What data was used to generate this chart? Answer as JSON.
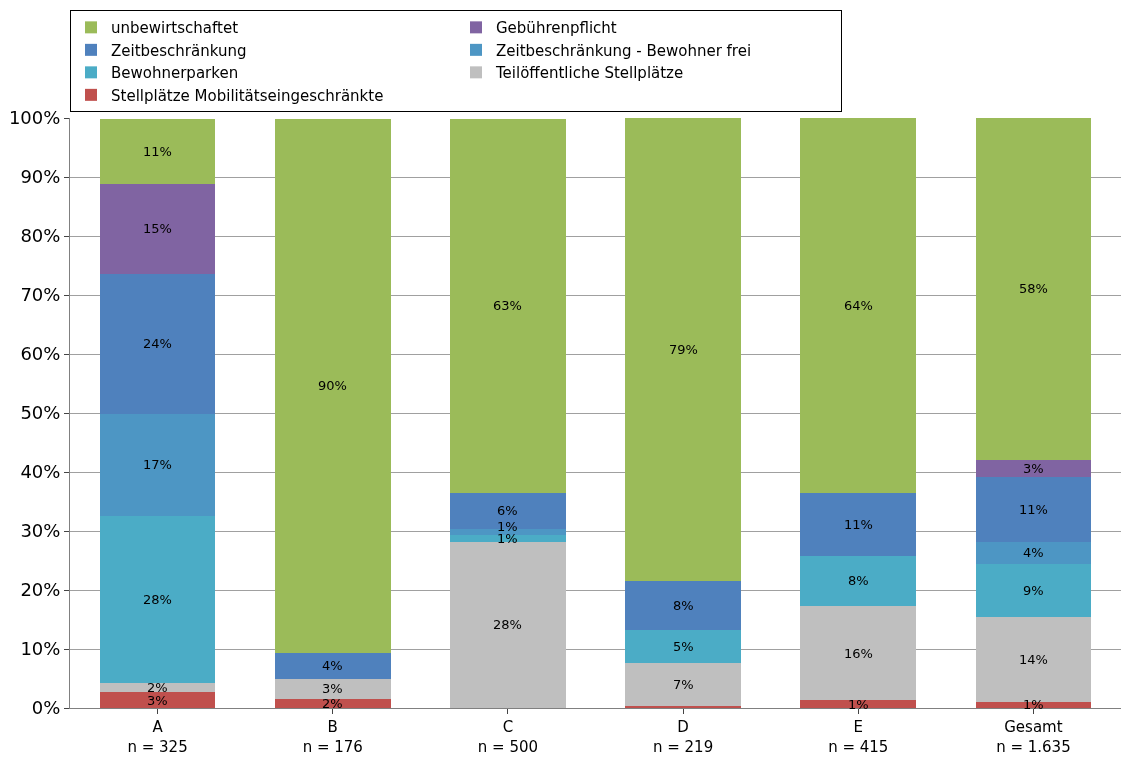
{
  "chart_data": {
    "type": "bar",
    "stacked": true,
    "categories": [
      "A\nn = 325",
      "B\nn = 176",
      "C\nn = 500",
      "D\nn = 219",
      "E\nn = 415",
      "Gesamt\nn = 1.635"
    ],
    "series": [
      {
        "name": "Stellplätze Mobilitätseingeschränkte",
        "color": "#c0504d",
        "values": [
          2.7,
          1.6,
          null,
          0.4,
          1.3,
          1.1
        ],
        "value_labels": [
          "3%",
          "2%",
          null,
          null,
          "1%",
          "1%"
        ]
      },
      {
        "name": "Teilöffentliche Stellplätze",
        "color": "#bfbfbf",
        "values": [
          1.6,
          3.4,
          28.2,
          7.3,
          16.0,
          14.3
        ],
        "value_labels": [
          "2%",
          "3%",
          "28%",
          "7%",
          "16%",
          "14%"
        ]
      },
      {
        "name": "Bewohnerparken",
        "color": "#4bacc6",
        "values": [
          28.3,
          null,
          1.2,
          5.5,
          8.5,
          9.0
        ],
        "value_labels": [
          "28%",
          null,
          "1%",
          "5%",
          "8%",
          "9%"
        ]
      },
      {
        "name": "Zeitbeschränkung - Bewohner frei",
        "color": "#4d96c4",
        "values": [
          17.3,
          null,
          1.0,
          null,
          null,
          3.8
        ],
        "value_labels": [
          "17%",
          null,
          "1%",
          null,
          null,
          "4%"
        ]
      },
      {
        "name": "Zeitbeschränkung",
        "color": "#4f81bd",
        "values": [
          23.7,
          4.4,
          6.1,
          8.3,
          10.6,
          10.9
        ],
        "value_labels": [
          "24%",
          "4%",
          "6%",
          "8%",
          "11%",
          "11%"
        ]
      },
      {
        "name": "Gebührenpflicht",
        "color": "#8064a2",
        "values": [
          15.2,
          null,
          null,
          null,
          null,
          3.0
        ],
        "value_labels": [
          "15%",
          null,
          null,
          null,
          null,
          "3%"
        ]
      },
      {
        "name": "unbewirtschaftet",
        "color": "#9bbb59",
        "values": [
          11.1,
          90.4,
          63.4,
          78.5,
          63.6,
          57.9
        ],
        "value_labels": [
          "11%",
          "90%",
          "63%",
          "79%",
          "64%",
          "58%"
        ]
      }
    ],
    "ylim": [
      0,
      100
    ],
    "yticks": [
      {
        "value": 0,
        "label": "0%"
      },
      {
        "value": 10,
        "label": "10%"
      },
      {
        "value": 20,
        "label": "20%"
      },
      {
        "value": 30,
        "label": "30%"
      },
      {
        "value": 40,
        "label": "40%"
      },
      {
        "value": 50,
        "label": "50%"
      },
      {
        "value": 60,
        "label": "60%"
      },
      {
        "value": 70,
        "label": "70%"
      },
      {
        "value": 80,
        "label": "80%"
      },
      {
        "value": 90,
        "label": "90%"
      },
      {
        "value": 100,
        "label": "100%"
      }
    ],
    "grid": "y",
    "legend": "top"
  }
}
